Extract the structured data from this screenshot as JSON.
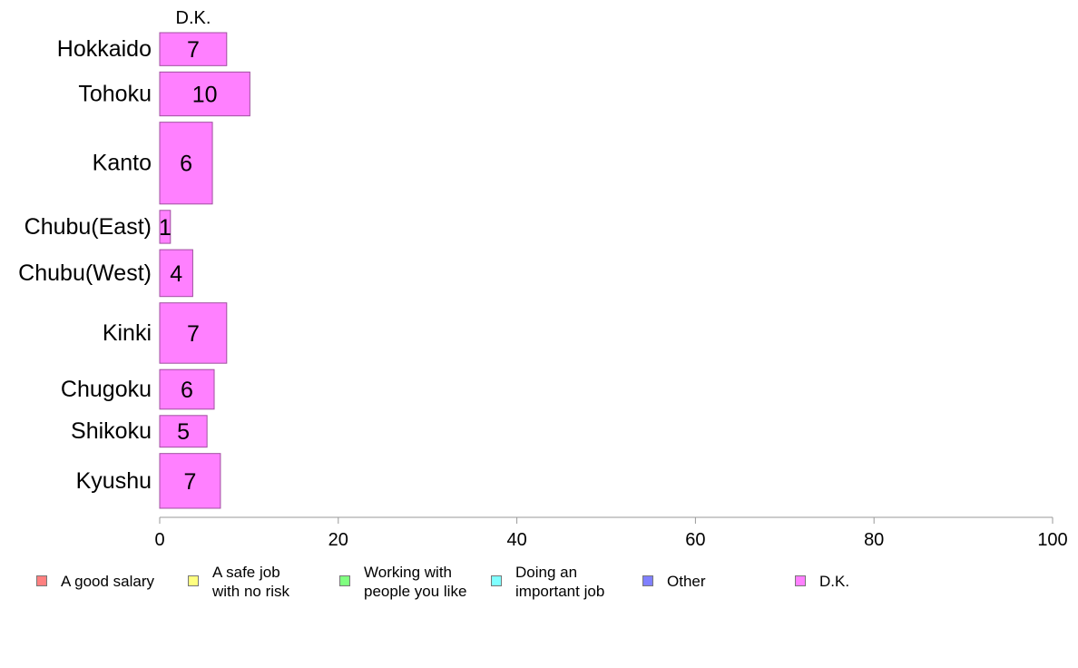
{
  "chart_data": {
    "type": "bar",
    "orientation": "horizontal",
    "series_header": "D.K.",
    "categories": [
      "Hokkaido",
      "Tohoku",
      "Kanto",
      "Chubu(East)",
      "Chubu(West)",
      "Kinki",
      "Chugoku",
      "Shikoku",
      "Kyushu"
    ],
    "series": [
      {
        "name": "A good salary",
        "color": "#ff8080",
        "values": [
          0,
          0,
          0,
          0,
          0,
          0,
          0,
          0,
          0
        ]
      },
      {
        "name": "A safe job\nwith no risk",
        "color": "#ffff80",
        "values": [
          0,
          0,
          0,
          0,
          0,
          0,
          0,
          0,
          0
        ]
      },
      {
        "name": "Working with\npeople you like",
        "color": "#80ff80",
        "values": [
          0,
          0,
          0,
          0,
          0,
          0,
          0,
          0,
          0
        ]
      },
      {
        "name": "Doing an\nimportant job",
        "color": "#80ffff",
        "values": [
          0,
          0,
          0,
          0,
          0,
          0,
          0,
          0,
          0
        ]
      },
      {
        "name": "Other",
        "color": "#8080ff",
        "values": [
          0,
          0,
          0,
          0,
          0,
          0,
          0,
          0,
          0
        ]
      },
      {
        "name": "D.K.",
        "color": "#ff80ff",
        "values": [
          7.5,
          10.1,
          5.9,
          1.2,
          3.7,
          7.5,
          6.1,
          5.3,
          6.8
        ]
      }
    ],
    "data_labels": [
      "7",
      "10",
      "6",
      "1",
      "4",
      "7",
      "6",
      "5",
      "7"
    ],
    "row_weights": [
      1,
      1.33,
      2.48,
      1,
      1.42,
      1.83,
      1.2,
      0.96,
      1.66
    ],
    "xlim": [
      0,
      100
    ],
    "xticks": [
      0,
      20,
      40,
      60,
      80,
      100
    ],
    "xlabel": "",
    "ylabel": "",
    "legend_position": "bottom",
    "grid": false
  }
}
